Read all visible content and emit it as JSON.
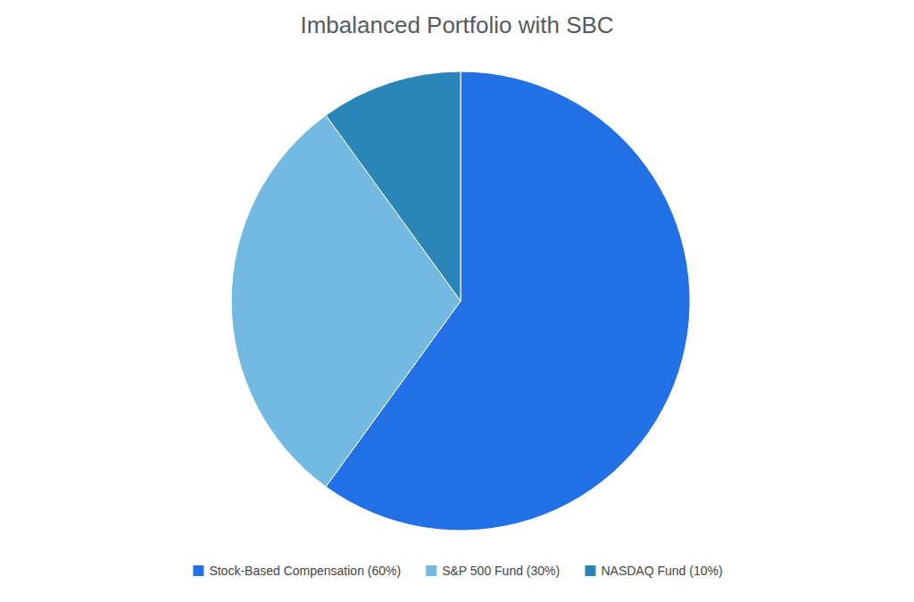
{
  "chart_data": {
    "type": "pie",
    "title": "Imbalanced Portfolio with SBC",
    "categories": [
      "Stock-Based Compensation (60%)",
      "S&P 500 Fund (30%)",
      "NASDAQ Fund (10%)"
    ],
    "values": [
      60,
      30,
      10
    ],
    "colors": [
      "#2270e6",
      "#72bae2",
      "#2b86b8"
    ],
    "legend": "bottom"
  }
}
